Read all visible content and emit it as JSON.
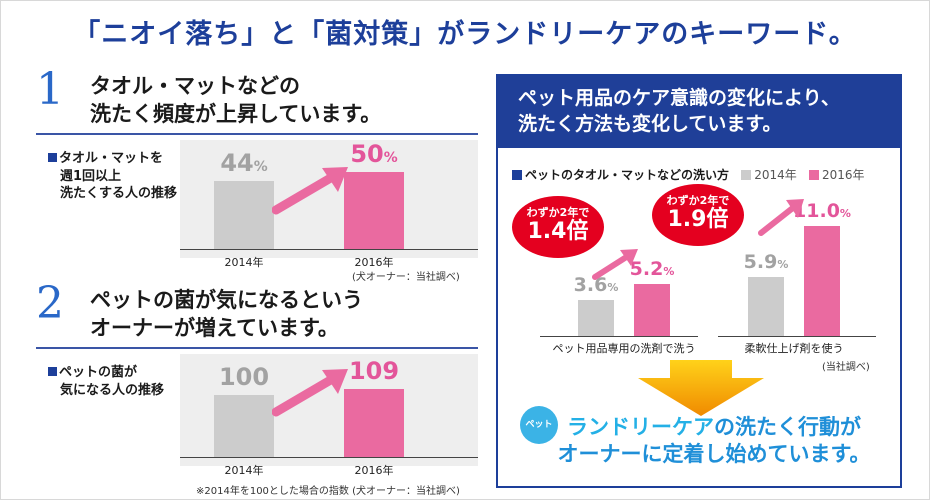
{
  "title": "「ニオイ落ち」と「菌対策」がランドリーケアのキーワード。",
  "section1": {
    "number": "1",
    "heading_line1": "タオル・マットなどの",
    "heading_line2": "洗たく頻度が上昇しています。",
    "note_line1": "タオル・マットを",
    "note_line2": "週1回以上",
    "note_line3": "洗たくする人の推移",
    "source": "(犬オーナー：当社調べ)"
  },
  "section2": {
    "number": "2",
    "heading_line1": "ペットの菌が気になるという",
    "heading_line2": "オーナーが増えています。",
    "note_line1": "ペットの菌が",
    "note_line2": "気になる人の推移",
    "source": "※2014年を100とした場合の指数 (犬オーナー：当社調べ)"
  },
  "panel": {
    "heading_line1": "ペット用品のケア意識の変化により、",
    "heading_line2": "洗たく方法も変化しています。",
    "legend_title": "ペットのタオル・マットなどの洗い方",
    "source": "(当社調べ)",
    "bubble1_small": "わずか2年で",
    "bubble1_big": "1.4倍",
    "bubble2_small": "わずか2年で",
    "bubble2_big": "1.9倍",
    "paw_label": "ペット",
    "bottom_line1_brand": "ランドリーケア",
    "bottom_line1_rest": "の洗たく行動が",
    "bottom_line2": "オーナーに定着し始めています。"
  },
  "colors": {
    "navy": "#1d3f9a",
    "gray_bar": "#cccccc",
    "pink_bar": "#ea6aa0",
    "red_bubble": "#e4001f",
    "cyan_text": "#1f8fd8"
  },
  "chart_data": [
    {
      "type": "bar",
      "categories": [
        "2014年",
        "2016年"
      ],
      "values": [
        44,
        50
      ],
      "value_labels": [
        "44",
        "50"
      ],
      "unit": "%"
    },
    {
      "type": "bar",
      "categories": [
        "2014年",
        "2016年"
      ],
      "values": [
        100,
        109
      ],
      "value_labels": [
        "100",
        "109"
      ],
      "unit": ""
    },
    {
      "type": "bar",
      "categories": [
        "ペット用品専用の洗剤で洗う",
        "柔軟仕上げ剤を使う"
      ],
      "series": [
        {
          "name": "2014年",
          "values": [
            3.6,
            5.9
          ],
          "labels": [
            "3.6",
            "5.9"
          ]
        },
        {
          "name": "2016年",
          "values": [
            5.2,
            11.0
          ],
          "labels": [
            "5.2",
            "11.0"
          ]
        }
      ],
      "unit": "%"
    }
  ]
}
